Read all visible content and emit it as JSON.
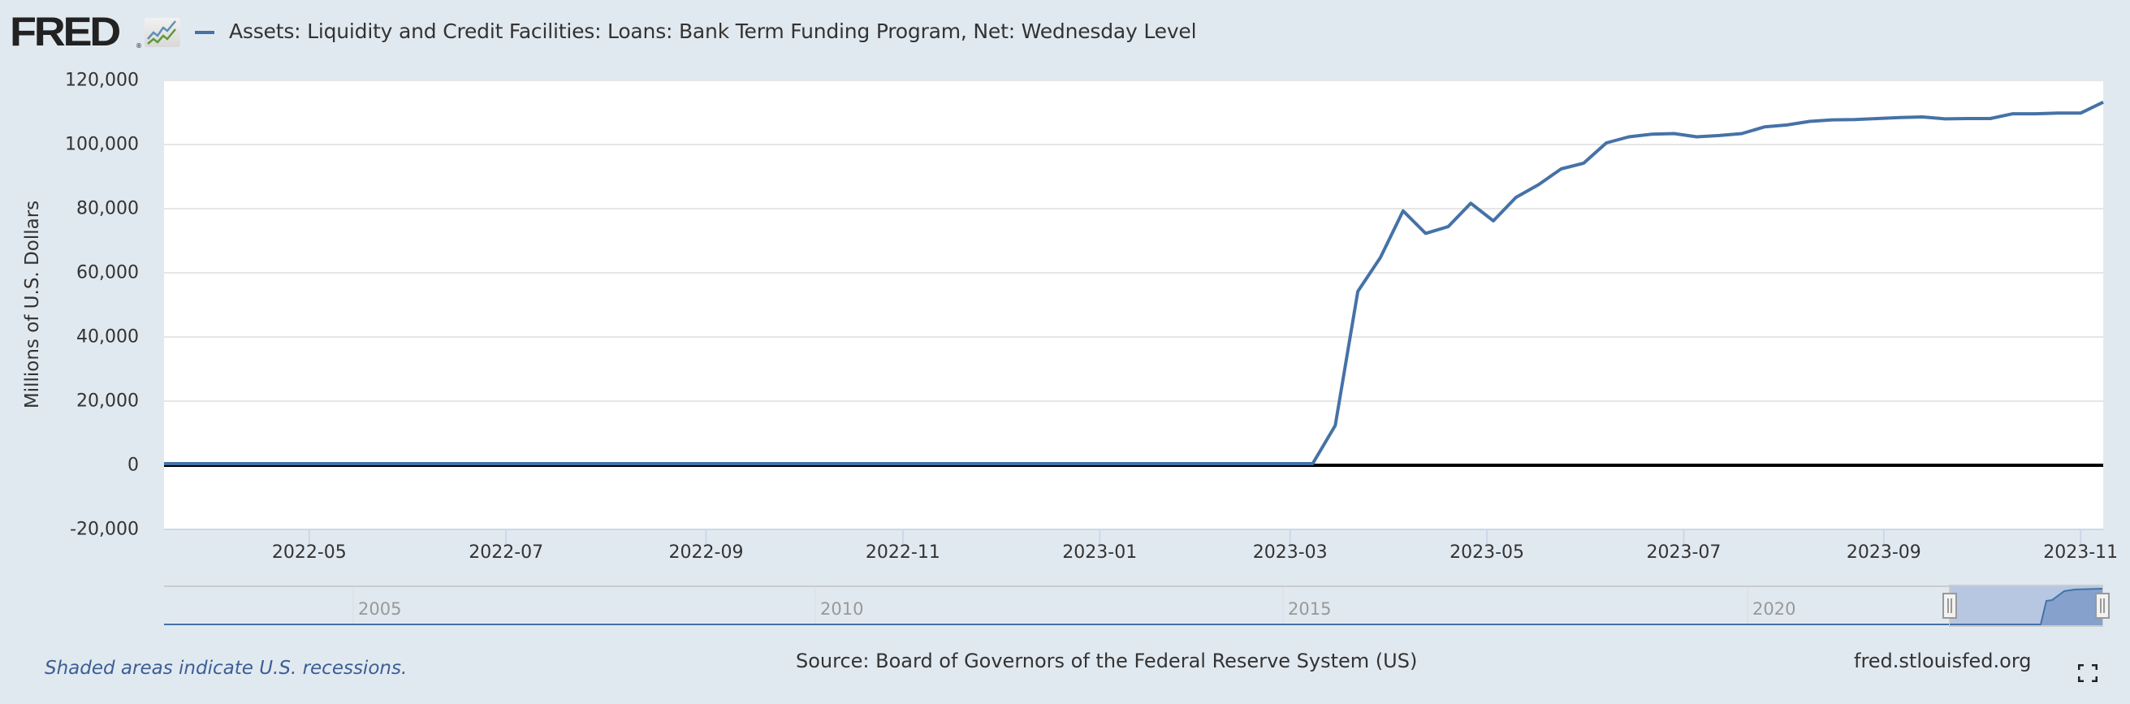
{
  "header": {
    "logo_text": "FRED",
    "logo_reg": "®",
    "logo_icon": "line-chart-icon",
    "series_title": "Assets: Liquidity and Credit Facilities: Loans: Bank Term Funding Program, Net: Wednesday Level",
    "series_color": "#4572a7"
  },
  "chart": {
    "ylabel": "Millions of U.S. Dollars",
    "yticks": [
      "120,000",
      "100,000",
      "80,000",
      "60,000",
      "40,000",
      "20,000",
      "0",
      "-20,000"
    ],
    "xticks": [
      "2022-05",
      "2022-07",
      "2022-09",
      "2022-11",
      "2023-01",
      "2023-03",
      "2023-05",
      "2023-07",
      "2023-09",
      "2023-11"
    ]
  },
  "navigator": {
    "labels": [
      "2005",
      "2010",
      "2015",
      "2020"
    ],
    "handle_icon": "drag-handle-icon"
  },
  "footer": {
    "recession_note": "Shaded areas indicate U.S. recessions.",
    "source": "Source: Board of Governors of the Federal Reserve System (US)",
    "url": "fred.stlouisfed.org",
    "fullscreen_icon": "fullscreen-icon"
  },
  "chart_data": {
    "type": "line",
    "title": "Assets: Liquidity and Credit Facilities: Loans: Bank Term Funding Program, Net: Wednesday Level",
    "xlabel": "",
    "ylabel": "Millions of U.S. Dollars",
    "ylim": [
      -20000,
      120000
    ],
    "xlim": [
      "2022-03-17",
      "2023-11-08"
    ],
    "grid": true,
    "legend_position": "top",
    "source": "Board of Governors of the Federal Reserve System (US)",
    "series": [
      {
        "name": "Assets: Liquidity and Credit Facilities: Loans: Bank Term Funding Program, Net: Wednesday Level",
        "color": "#4572a7",
        "x": [
          "2022-03-17",
          "2023-03-08",
          "2023-03-15",
          "2023-03-22",
          "2023-03-29",
          "2023-04-05",
          "2023-04-12",
          "2023-04-19",
          "2023-04-26",
          "2023-05-03",
          "2023-05-10",
          "2023-05-17",
          "2023-05-24",
          "2023-05-31",
          "2023-06-07",
          "2023-06-14",
          "2023-06-21",
          "2023-06-28",
          "2023-07-05",
          "2023-07-12",
          "2023-07-19",
          "2023-07-26",
          "2023-08-02",
          "2023-08-09",
          "2023-08-16",
          "2023-08-23",
          "2023-08-30",
          "2023-09-06",
          "2023-09-13",
          "2023-09-20",
          "2023-09-27",
          "2023-10-04",
          "2023-10-11",
          "2023-10-18",
          "2023-10-25",
          "2023-11-01",
          "2023-11-08"
        ],
        "values": [
          0,
          0,
          11900,
          53700,
          64300,
          78800,
          71800,
          73900,
          81200,
          75700,
          83000,
          87000,
          91900,
          93700,
          100000,
          101900,
          102700,
          102900,
          101900,
          102300,
          102900,
          105000,
          105600,
          106700,
          107200,
          107300,
          107600,
          107900,
          108100,
          107500,
          107600,
          107600,
          109100,
          109100,
          109300,
          109300,
          112700
        ]
      }
    ]
  }
}
